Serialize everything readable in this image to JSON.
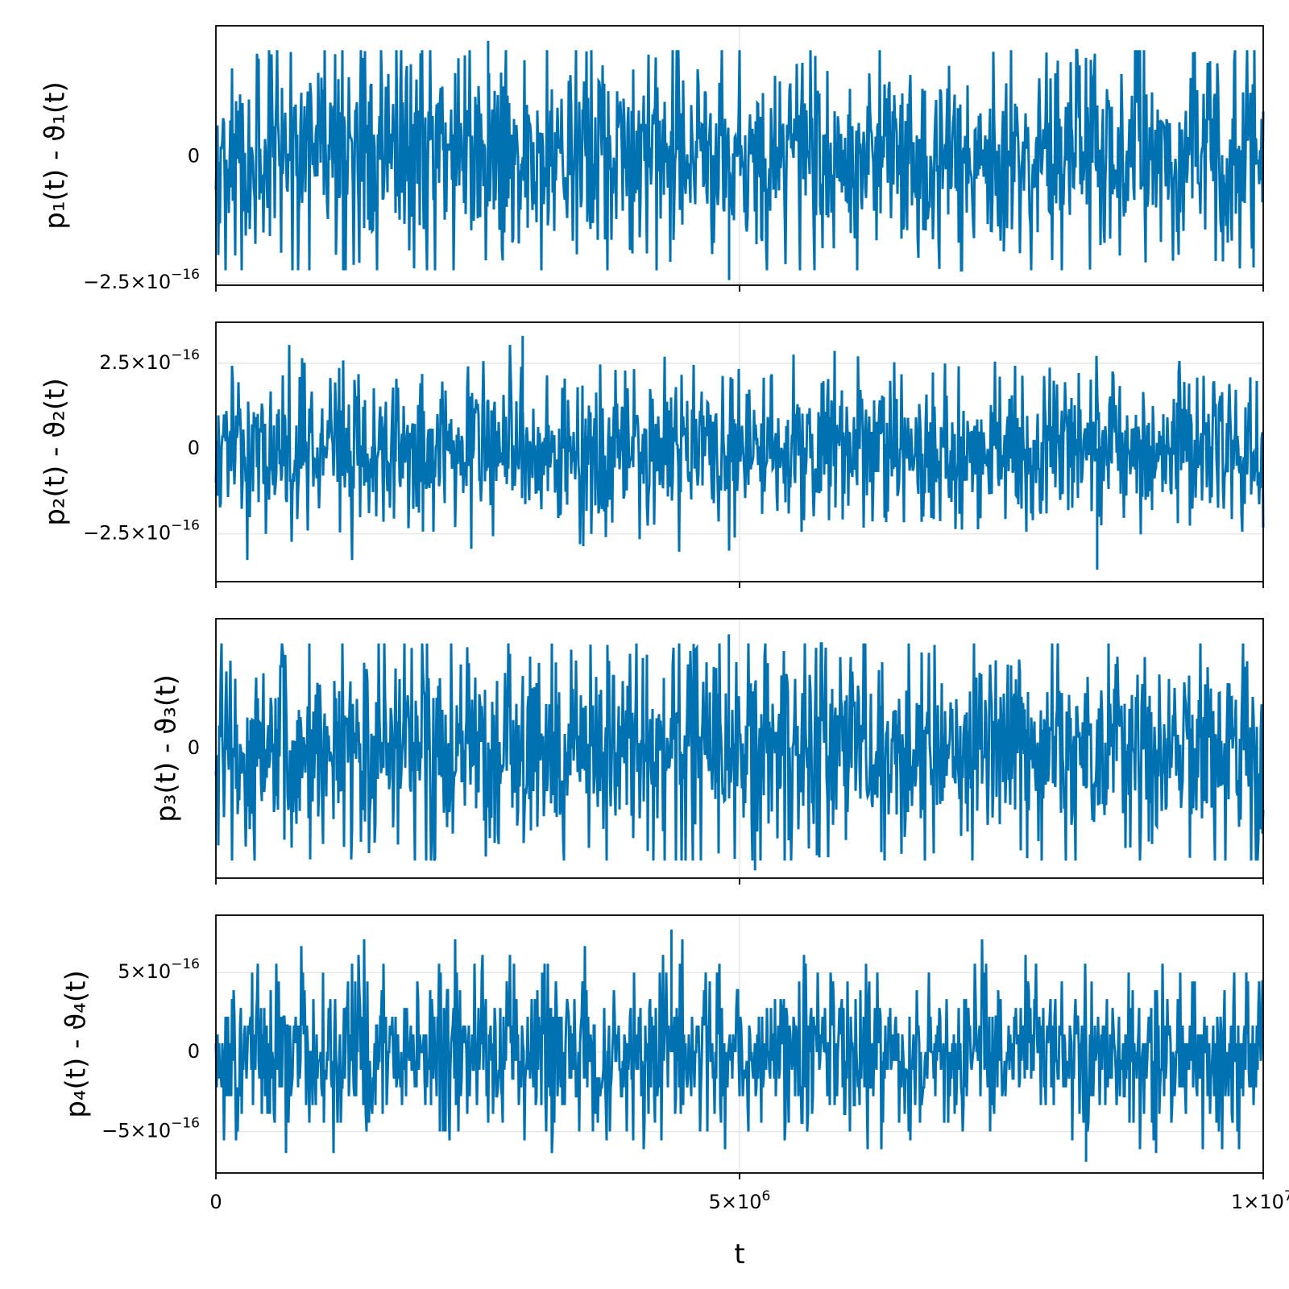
{
  "chart_data": [
    {
      "type": "line",
      "ylabel": "p₁(t) - ϑ₁(t)",
      "yticks": [
        {
          "value": 0,
          "label": "0"
        },
        {
          "value": -2.5e-16,
          "label": "−2.5×10",
          "exp": "−16"
        }
      ],
      "ylim": [
        -2.55e-16,
        2.6e-16
      ],
      "amplitude": 1e-16,
      "peak_max": 2.3e-16,
      "peak_min": -2.45e-16,
      "series": [
        {
          "color": "#0072b2"
        }
      ],
      "xlim": [
        0,
        10000000
      ]
    },
    {
      "type": "line",
      "ylabel": "p₂(t) - ϑ₂(t)",
      "yticks": [
        {
          "value": 2.5e-16,
          "label": "2.5×10",
          "exp": "−16"
        },
        {
          "value": 0,
          "label": "0"
        },
        {
          "value": -2.5e-16,
          "label": "−2.5×10",
          "exp": "−16"
        }
      ],
      "ylim": [
        -3.9e-16,
        3.7e-16
      ],
      "amplitude": 1.05e-16,
      "peak_max": 3.3e-16,
      "peak_min": -3.55e-16,
      "series": [
        {
          "color": "#0072b2"
        }
      ],
      "xlim": [
        0,
        10000000
      ]
    },
    {
      "type": "line",
      "ylabel": "p₃(t) - ϑ₃(t)",
      "yticks": [
        {
          "value": 0,
          "label": "0"
        }
      ],
      "ylim": [
        -1.0,
        1.0
      ],
      "amplitude": 0.38,
      "peak_max": 0.88,
      "peak_min": -0.94,
      "series": [
        {
          "color": "#0072b2"
        }
      ],
      "xlim": [
        0,
        10000000
      ]
    },
    {
      "type": "line",
      "ylabel": "p₄(t) - ϑ₄(t)",
      "yticks": [
        {
          "value": 5e-16,
          "label": "5×10",
          "exp": "−16"
        },
        {
          "value": 0,
          "label": "0"
        },
        {
          "value": -5e-16,
          "label": "−5×10",
          "exp": "−16"
        }
      ],
      "ylim": [
        -7.6e-16,
        8.6e-16
      ],
      "amplitude": 2.4e-16,
      "quantum": 5.55e-17,
      "peak_max": 7.7e-16,
      "peak_min": -6.9e-16,
      "series": [
        {
          "color": "#0072b2"
        }
      ],
      "xlim": [
        0,
        10000000
      ],
      "xlabel": "t",
      "xticks": [
        {
          "value": 0,
          "label": "0"
        },
        {
          "value": 5000000,
          "label": "5×10",
          "exp": "6"
        },
        {
          "value": 10000000,
          "label": "1×10",
          "exp": "7"
        }
      ]
    }
  ]
}
